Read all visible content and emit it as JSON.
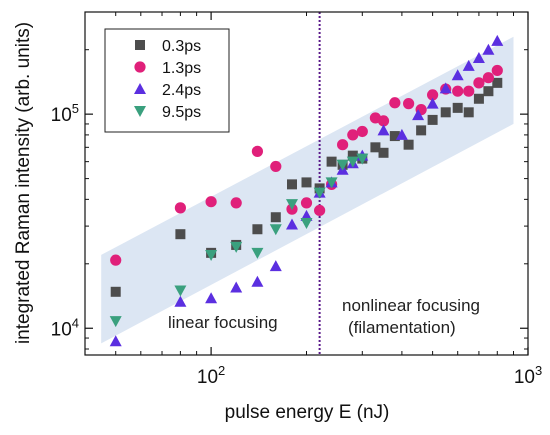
{
  "chart_data": {
    "type": "scatter",
    "xlabel": "pulse energy E (nJ)",
    "ylabel": "integrated Raman intensity (arb. units)",
    "x_scale": "log",
    "y_scale": "log",
    "xlim": [
      40,
      1000
    ],
    "ylim": [
      7500,
      300000
    ],
    "x_ticks": [
      {
        "value": 100,
        "base": "10",
        "exp": "2"
      },
      {
        "value": 1000,
        "base": "10",
        "exp": "3"
      }
    ],
    "y_ticks": [
      {
        "value": 10000,
        "base": "10",
        "exp": "4"
      },
      {
        "value": 100000,
        "base": "10",
        "exp": "5"
      }
    ],
    "grid": false,
    "legend_position": "top-left",
    "threshold_x": 220,
    "annotations": {
      "linear": "linear focusing",
      "nonlinear_line1": "nonlinear focusing",
      "nonlinear_line2": "(filamentation)"
    },
    "band": {
      "color": "#dce6f3",
      "lower_left": [
        45,
        8500
      ],
      "upper_left": [
        45,
        22000
      ],
      "lower_right": [
        900,
        90000
      ],
      "upper_right": [
        900,
        230000
      ]
    },
    "series": [
      {
        "name": "0.3ps",
        "marker": "square",
        "color": "#4d4d4d",
        "points": [
          [
            50,
            14800
          ],
          [
            80,
            27500
          ],
          [
            100,
            22500
          ],
          [
            120,
            24500
          ],
          [
            140,
            29000
          ],
          [
            160,
            33000
          ],
          [
            180,
            47000
          ],
          [
            200,
            48000
          ],
          [
            220,
            45000
          ],
          [
            240,
            60000
          ],
          [
            260,
            58000
          ],
          [
            280,
            64000
          ],
          [
            300,
            62000
          ],
          [
            330,
            70000
          ],
          [
            350,
            66000
          ],
          [
            380,
            79000
          ],
          [
            420,
            72000
          ],
          [
            460,
            84000
          ],
          [
            500,
            94000
          ],
          [
            550,
            102000
          ],
          [
            600,
            107000
          ],
          [
            650,
            102000
          ],
          [
            700,
            118000
          ],
          [
            750,
            128000
          ],
          [
            800,
            140000
          ]
        ]
      },
      {
        "name": "1.3ps",
        "marker": "circle",
        "color": "#e0207a",
        "points": [
          [
            50,
            20800
          ],
          [
            80,
            36500
          ],
          [
            100,
            39000
          ],
          [
            120,
            38500
          ],
          [
            140,
            67000
          ],
          [
            160,
            57000
          ],
          [
            180,
            36000
          ],
          [
            200,
            38500
          ],
          [
            220,
            35500
          ],
          [
            240,
            47000
          ],
          [
            260,
            72000
          ],
          [
            280,
            80000
          ],
          [
            300,
            83000
          ],
          [
            330,
            96000
          ],
          [
            350,
            93000
          ],
          [
            380,
            113000
          ],
          [
            420,
            112000
          ],
          [
            460,
            105000
          ],
          [
            500,
            123000
          ],
          [
            550,
            131000
          ],
          [
            600,
            128000
          ],
          [
            650,
            128000
          ],
          [
            700,
            140000
          ],
          [
            750,
            148000
          ],
          [
            800,
            160000
          ]
        ]
      },
      {
        "name": "2.4ps",
        "marker": "triangle-up",
        "color": "#5b2fe0",
        "points": [
          [
            50,
            8700
          ],
          [
            80,
            13300
          ],
          [
            100,
            13800
          ],
          [
            120,
            15500
          ],
          [
            140,
            16500
          ],
          [
            160,
            19500
          ],
          [
            180,
            30500
          ],
          [
            200,
            33500
          ],
          [
            220,
            43000
          ],
          [
            240,
            48000
          ],
          [
            260,
            55000
          ],
          [
            280,
            59000
          ],
          [
            300,
            64000
          ],
          [
            350,
            84000
          ],
          [
            400,
            80000
          ],
          [
            450,
            99000
          ],
          [
            500,
            112000
          ],
          [
            550,
            132000
          ],
          [
            600,
            152000
          ],
          [
            650,
            168000
          ],
          [
            700,
            183000
          ],
          [
            750,
            200000
          ],
          [
            800,
            220000
          ]
        ]
      },
      {
        "name": "9.5ps",
        "marker": "triangle-down",
        "color": "#3aa07e",
        "points": [
          [
            50,
            10800
          ],
          [
            80,
            15000
          ],
          [
            100,
            22000
          ],
          [
            120,
            24000
          ],
          [
            140,
            22500
          ],
          [
            160,
            29000
          ],
          [
            180,
            38000
          ],
          [
            200,
            31000
          ],
          [
            220,
            43000
          ],
          [
            240,
            48000
          ],
          [
            260,
            58000
          ],
          [
            280,
            60000
          ],
          [
            300,
            62000
          ]
        ]
      }
    ]
  }
}
